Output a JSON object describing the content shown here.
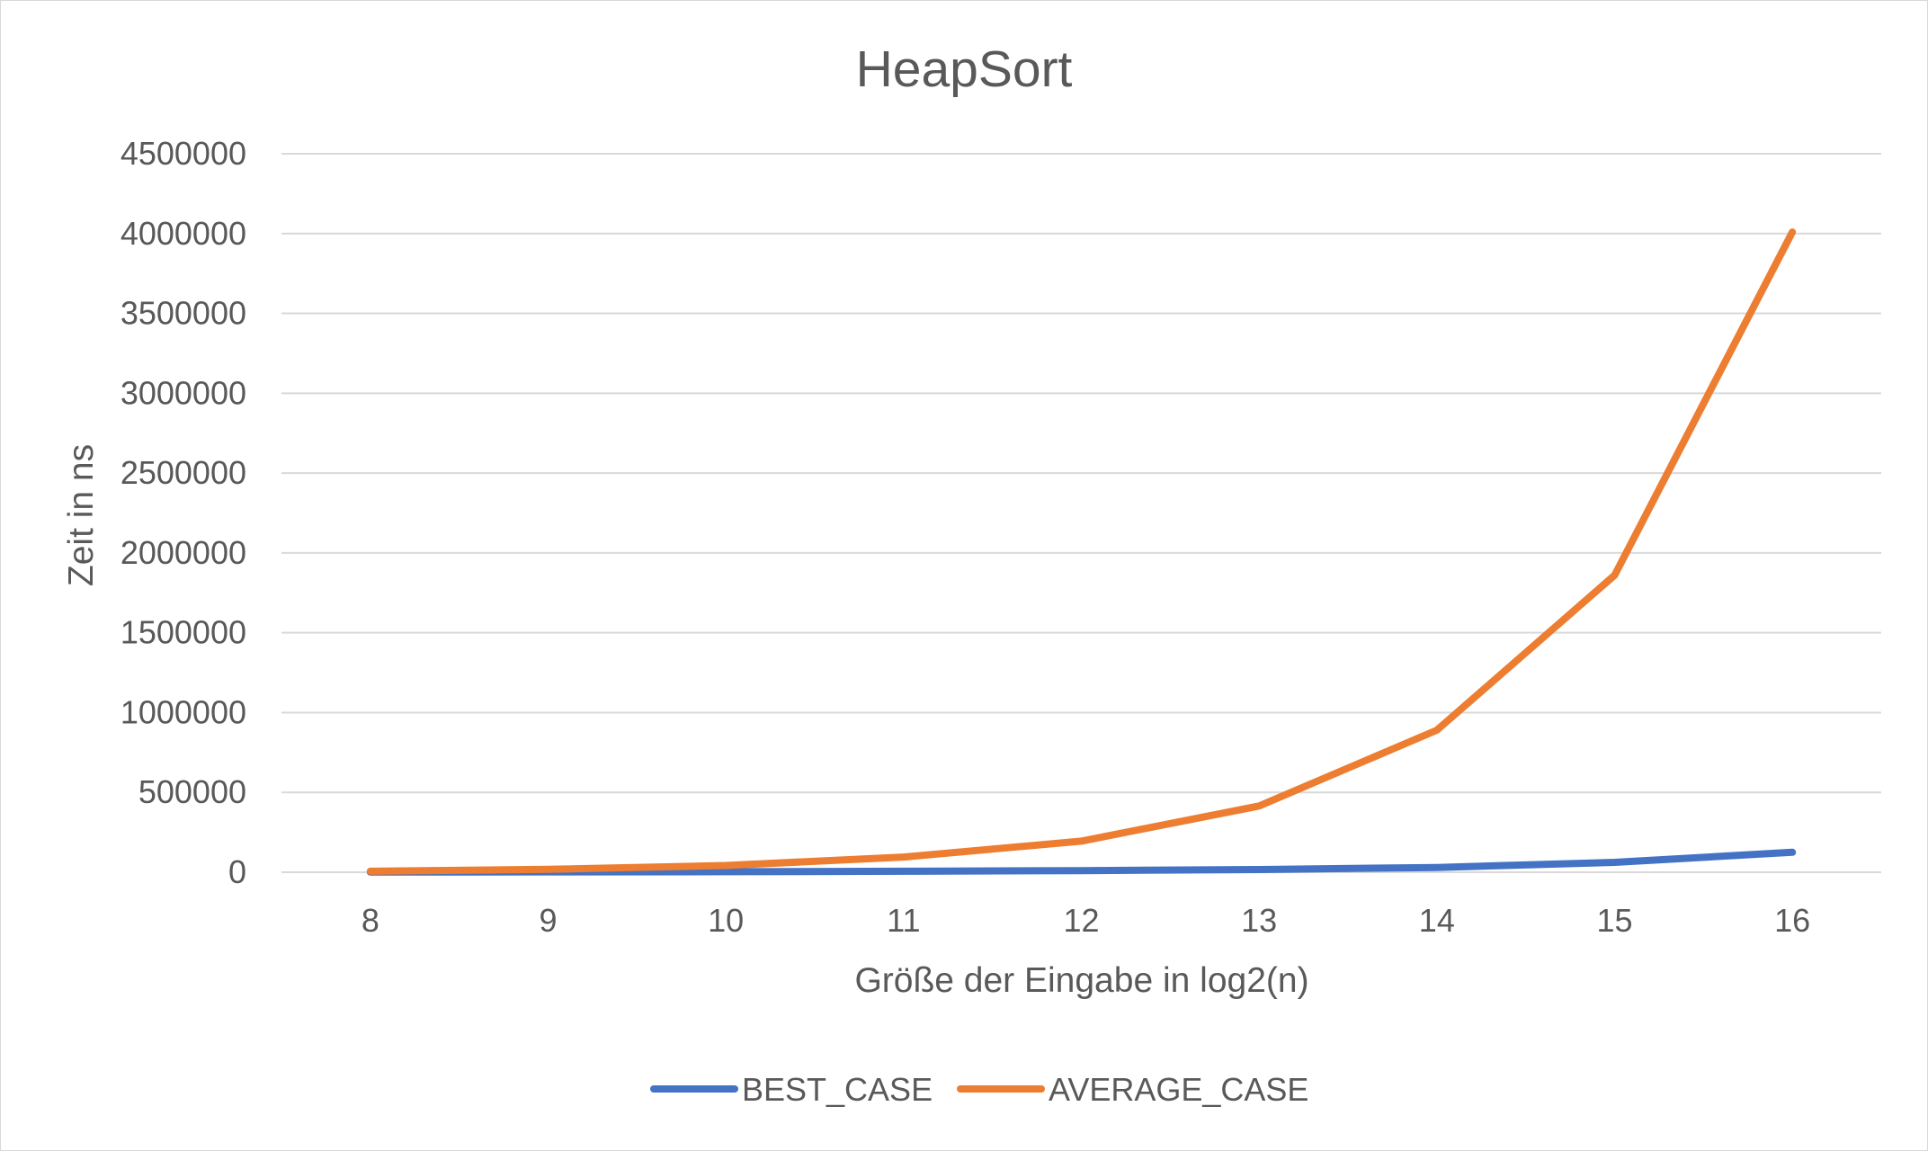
{
  "chart_data": {
    "type": "line",
    "title": "HeapSort",
    "xlabel": "Größe der Eingabe in log2(n)",
    "ylabel": "Zeit in ns",
    "categories": [
      "8",
      "9",
      "10",
      "11",
      "12",
      "13",
      "14",
      "15",
      "16"
    ],
    "ylim": [
      0,
      4500000
    ],
    "yticks": [
      "0",
      "500000",
      "1000000",
      "1500000",
      "2000000",
      "2500000",
      "3000000",
      "3500000",
      "4000000",
      "4500000"
    ],
    "grid": true,
    "legend_position": "bottom",
    "series": [
      {
        "name": "BEST_CASE",
        "color": "#4472C4",
        "values": [
          1000,
          2000,
          3500,
          6000,
          10000,
          17000,
          30000,
          62000,
          125000
        ]
      },
      {
        "name": "AVERAGE_CASE",
        "color": "#ED7D31",
        "values": [
          6000,
          18000,
          42000,
          95000,
          195000,
          415000,
          890000,
          1860000,
          4010000
        ]
      }
    ]
  }
}
